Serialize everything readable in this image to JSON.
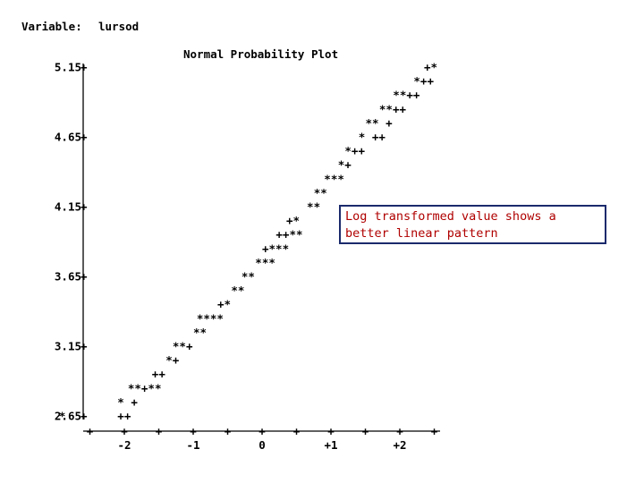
{
  "header": {
    "variable_label": "Variable:",
    "variable_name": "lursod"
  },
  "annotation": {
    "text": "Log transformed value shows a better linear pattern",
    "color": "#b00000",
    "border_color": "#1a2a6c"
  },
  "chart_data": {
    "type": "scatter",
    "title": "Normal Probability Plot",
    "xlabel": "",
    "ylabel": "",
    "y_tick_labels": [
      "5.15",
      "4.65",
      "4.15",
      "3.65",
      "3.15",
      "2.65"
    ],
    "y_ticks": [
      5.15,
      4.65,
      4.15,
      3.65,
      3.15,
      2.65
    ],
    "x_tick_labels": [
      "-2",
      "-1",
      "0",
      "+1",
      "+2"
    ],
    "x_ticks": [
      -2,
      -1,
      0,
      1,
      2
    ],
    "xlim": [
      -2.5,
      2.5
    ],
    "ylim": [
      2.65,
      5.15
    ],
    "grid": false,
    "legend": "none",
    "marker_symbol": "*",
    "reference_symbol": "+",
    "rows": [
      {
        "y": 5.15,
        "marks": [
          {
            "x": 2.35,
            "s": "+*"
          }
        ]
      },
      {
        "y": 5.05,
        "marks": [
          {
            "x": 2.2,
            "s": "*++"
          }
        ]
      },
      {
        "y": 4.95,
        "marks": [
          {
            "x": 1.9,
            "s": "**++"
          }
        ]
      },
      {
        "y": 4.85,
        "marks": [
          {
            "x": 1.7,
            "s": "**++"
          }
        ]
      },
      {
        "y": 4.75,
        "marks": [
          {
            "x": 1.5,
            "s": "** +"
          }
        ]
      },
      {
        "y": 4.65,
        "marks": [
          {
            "x": 1.4,
            "s": "* ++"
          }
        ]
      },
      {
        "y": 4.55,
        "marks": [
          {
            "x": 1.2,
            "s": "*++"
          }
        ]
      },
      {
        "y": 4.45,
        "marks": [
          {
            "x": 1.1,
            "s": "*+"
          }
        ]
      },
      {
        "y": 4.35,
        "marks": [
          {
            "x": 0.9,
            "s": "***"
          }
        ]
      },
      {
        "y": 4.25,
        "marks": [
          {
            "x": 0.75,
            "s": "**"
          }
        ]
      },
      {
        "y": 4.15,
        "marks": [
          {
            "x": 0.65,
            "s": "**"
          }
        ]
      },
      {
        "y": 4.05,
        "marks": [
          {
            "x": 0.35,
            "s": "+*"
          }
        ]
      },
      {
        "y": 3.95,
        "marks": [
          {
            "x": 0.2,
            "s": "++**"
          }
        ]
      },
      {
        "y": 3.85,
        "marks": [
          {
            "x": 0.0,
            "s": "+***"
          }
        ]
      },
      {
        "y": 3.75,
        "marks": [
          {
            "x": -0.1,
            "s": "***"
          }
        ]
      },
      {
        "y": 3.65,
        "marks": [
          {
            "x": -0.3,
            "s": "**"
          }
        ]
      },
      {
        "y": 3.55,
        "marks": [
          {
            "x": -0.45,
            "s": "**"
          }
        ]
      },
      {
        "y": 3.45,
        "marks": [
          {
            "x": -0.65,
            "s": "+*"
          }
        ]
      },
      {
        "y": 3.35,
        "marks": [
          {
            "x": -0.95,
            "s": "****"
          }
        ]
      },
      {
        "y": 3.25,
        "marks": [
          {
            "x": -1.0,
            "s": "**"
          }
        ]
      },
      {
        "y": 3.15,
        "marks": [
          {
            "x": -1.3,
            "s": "**+"
          }
        ]
      },
      {
        "y": 3.05,
        "marks": [
          {
            "x": -1.4,
            "s": "*+"
          }
        ]
      },
      {
        "y": 2.95,
        "marks": [
          {
            "x": -1.6,
            "s": "++"
          }
        ]
      },
      {
        "y": 2.85,
        "marks": [
          {
            "x": -1.95,
            "s": "**+**"
          }
        ]
      },
      {
        "y": 2.75,
        "marks": [
          {
            "x": -2.1,
            "s": "* +"
          }
        ]
      },
      {
        "y": 2.65,
        "marks": [
          {
            "x": -2.95,
            "s": "*"
          },
          {
            "x": -2.1,
            "s": "++"
          }
        ]
      }
    ]
  }
}
